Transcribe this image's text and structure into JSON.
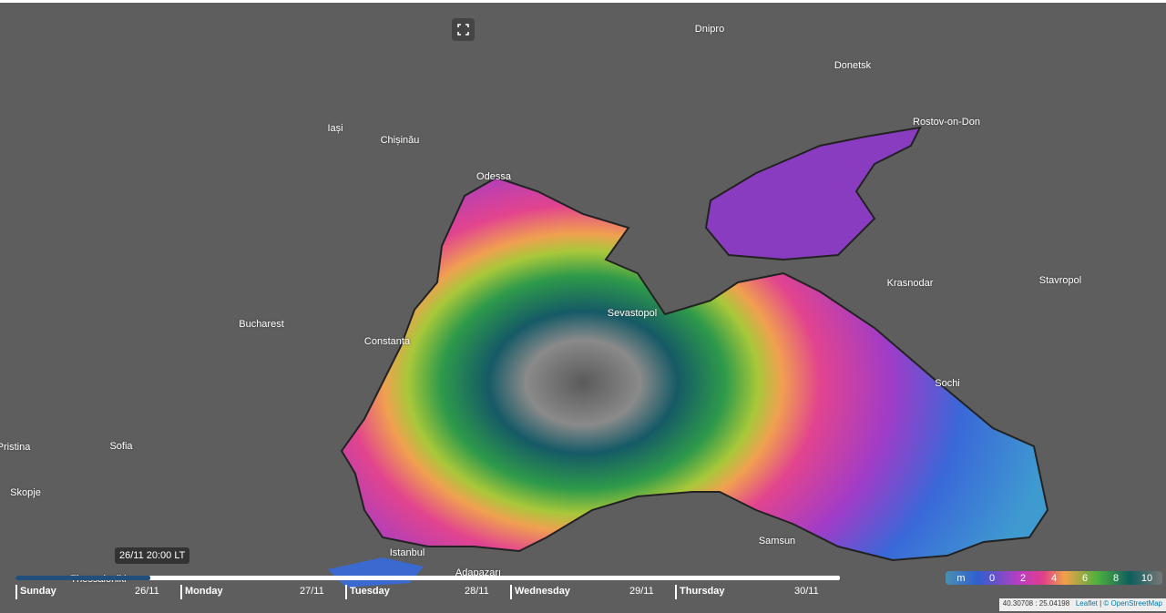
{
  "cities": [
    "Dnipro",
    "Donetsk",
    "Rostov-on-Don",
    "Iași",
    "Chișinău",
    "Odessa",
    "Krasnodar",
    "Stavropol",
    "Sevastopol",
    "Bucharest",
    "Constanta",
    "Sochi",
    "Pristina",
    "Sofia",
    "Skopje",
    "Istanbul",
    "Samsun",
    "Adapazarı",
    "Thessaloniki"
  ],
  "timeline": {
    "tooltip": "26/11 20:00 LT",
    "days": [
      {
        "day": "Sunday",
        "date": "26/11"
      },
      {
        "day": "Monday",
        "date": "27/11"
      },
      {
        "day": "Tuesday",
        "date": "28/11"
      },
      {
        "day": "Wednesday",
        "date": "29/11"
      },
      {
        "day": "Thursday",
        "date": "30/11"
      }
    ]
  },
  "legend": {
    "unit": "m",
    "ticks": [
      0,
      2,
      4,
      6,
      8,
      10
    ]
  },
  "footer": {
    "coordinates": "40.30708 : 25.04198",
    "attribution": [
      "Leaflet",
      "© OpenStreetMap"
    ]
  }
}
